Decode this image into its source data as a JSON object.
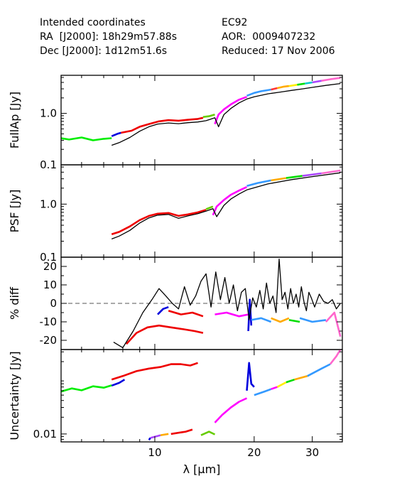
{
  "header": {
    "left": [
      "Intended coordinates",
      "RA  [J2000]: 18h29m57.88s",
      "Dec [J2000]: 1d12m51.6s"
    ],
    "right": [
      "EC92",
      "AOR:  0009407232",
      "Reduced: 17 Nov 2006"
    ]
  },
  "chart_data": {
    "type": "line",
    "xlabel": "λ [μm]",
    "x_scale": "log",
    "xlim": [
      5.2,
      37
    ],
    "x_ticks": [
      "10",
      "20",
      "30"
    ],
    "panels": [
      {
        "name": "fullap",
        "ylabel": "FullAp [Jy]",
        "y_scale": "log",
        "ylim": [
          0.1,
          5.5
        ],
        "y_ticks": [
          "1.0",
          "0.1"
        ],
        "series": [
          {
            "color": "#00ee00",
            "x": [
              5.2,
              5.5,
              6.0,
              6.5,
              7.0,
              7.4
            ],
            "y": [
              0.33,
              0.31,
              0.34,
              0.3,
              0.32,
              0.33
            ]
          },
          {
            "color": "#0000dd",
            "x": [
              7.4,
              7.7,
              7.9
            ],
            "y": [
              0.36,
              0.4,
              0.42
            ]
          },
          {
            "color": "#ee0000",
            "x": [
              7.9,
              8.5,
              9.0,
              9.6,
              10.3,
              11.0,
              11.8,
              12.6,
              13.5,
              14.0
            ],
            "y": [
              0.42,
              0.46,
              0.55,
              0.62,
              0.7,
              0.74,
              0.72,
              0.75,
              0.78,
              0.82
            ]
          },
          {
            "color": "#66cc00",
            "x": [
              14.0,
              14.6,
              15.2
            ],
            "y": [
              0.85,
              0.88,
              0.95
            ]
          },
          {
            "color": "#ff00ff",
            "x": [
              15.2,
              15.6,
              16.2,
              17.0,
              18.0,
              19.0
            ],
            "y": [
              0.62,
              0.95,
              1.2,
              1.5,
              1.85,
              2.1
            ]
          },
          {
            "color": "#3399ff",
            "x": [
              19.0,
              20.0,
              21.0,
              22.5
            ],
            "y": [
              2.2,
              2.5,
              2.7,
              2.9
            ]
          },
          {
            "color": "#ff3333",
            "x": [
              22.5,
              23.5
            ],
            "y": [
              2.9,
              3.1
            ]
          },
          {
            "color": "#ffaa00",
            "x": [
              23.5,
              24.5,
              25.5
            ],
            "y": [
              3.1,
              3.3,
              3.4
            ]
          },
          {
            "color": "#ffee00",
            "x": [
              25.5,
              27.0
            ],
            "y": [
              3.4,
              3.6
            ]
          },
          {
            "color": "#00dd00",
            "x": [
              27.0,
              28.5
            ],
            "y": [
              3.6,
              3.8
            ]
          },
          {
            "color": "#00cccc",
            "x": [
              28.5,
              30.0
            ],
            "y": [
              3.8,
              4.0
            ]
          },
          {
            "color": "#aa44ff",
            "x": [
              30.0,
              32.0
            ],
            "y": [
              4.0,
              4.3
            ]
          },
          {
            "color": "#ff66cc",
            "x": [
              32.0,
              34.0,
              36.5
            ],
            "y": [
              4.3,
              4.6,
              4.9
            ]
          },
          {
            "color": "#000000",
            "x": [
              7.4,
              7.8,
              8.4,
              9.0,
              9.6,
              10.2,
              11.0,
              11.8,
              12.6,
              13.5,
              14.3,
              15.2,
              15.6,
              16.2,
              17.0,
              18.0,
              19.0,
              20.0,
              22.0,
              24.0,
              26.0,
              28.0,
              30.0,
              33.0,
              36.5
            ],
            "y": [
              0.24,
              0.27,
              0.34,
              0.45,
              0.55,
              0.62,
              0.65,
              0.63,
              0.66,
              0.68,
              0.72,
              0.82,
              0.55,
              0.95,
              1.25,
              1.6,
              1.9,
              2.1,
              2.4,
              2.6,
              2.8,
              3.0,
              3.2,
              3.5,
              3.8
            ]
          }
        ]
      },
      {
        "name": "psf",
        "ylabel": "PSF [Jy]",
        "y_scale": "log",
        "ylim": [
          0.1,
          5.5
        ],
        "y_ticks": [
          "1.0",
          "0.1"
        ],
        "series": [
          {
            "color": "#ee0000",
            "x": [
              7.4,
              7.8,
              8.4,
              9.0,
              9.6,
              10.2,
              11.0,
              11.8,
              12.6,
              13.5,
              14.3
            ],
            "y": [
              0.27,
              0.3,
              0.38,
              0.5,
              0.6,
              0.66,
              0.68,
              0.6,
              0.64,
              0.7,
              0.78
            ]
          },
          {
            "color": "#66cc00",
            "x": [
              14.3,
              15.0
            ],
            "y": [
              0.8,
              0.9
            ]
          },
          {
            "color": "#ff00ff",
            "x": [
              15.0,
              15.4,
              16.2,
              17.0,
              18.0,
              19.0
            ],
            "y": [
              0.62,
              0.9,
              1.2,
              1.5,
              1.8,
              2.1
            ]
          },
          {
            "color": "#3399ff",
            "x": [
              19.0,
              20.5,
              22.5
            ],
            "y": [
              2.2,
              2.5,
              2.8
            ]
          },
          {
            "color": "#ffaa00",
            "x": [
              22.5,
              25.0
            ],
            "y": [
              2.8,
              3.1
            ]
          },
          {
            "color": "#00dd00",
            "x": [
              25.0,
              28.0
            ],
            "y": [
              3.1,
              3.4
            ]
          },
          {
            "color": "#aa44ff",
            "x": [
              28.0,
              32.0
            ],
            "y": [
              3.4,
              3.8
            ]
          },
          {
            "color": "#ff66cc",
            "x": [
              32.0,
              36.5
            ],
            "y": [
              3.8,
              4.3
            ]
          },
          {
            "color": "#000000",
            "x": [
              7.4,
              7.8,
              8.4,
              9.0,
              9.6,
              10.2,
              11.0,
              11.8,
              12.6,
              13.5,
              14.3,
              15.0,
              15.4,
              16.2,
              17.0,
              18.0,
              19.0,
              22.0,
              26.0,
              30.0,
              36.5
            ],
            "y": [
              0.22,
              0.25,
              0.32,
              0.44,
              0.55,
              0.62,
              0.64,
              0.54,
              0.6,
              0.66,
              0.74,
              0.82,
              0.58,
              0.95,
              1.25,
              1.55,
              1.85,
              2.4,
              2.9,
              3.3,
              3.9
            ]
          }
        ]
      },
      {
        "name": "diff",
        "ylabel": "% diff",
        "y_scale": "linear",
        "ylim": [
          -25,
          25
        ],
        "y_ticks": [
          "20",
          "10",
          "0",
          "-10",
          "-20"
        ],
        "series": [
          {
            "color": "#ee0000",
            "x": [
              8.2,
              8.8,
              9.5,
              10.3,
              11.2,
              12.2,
              13.2,
              14.0
            ],
            "y": [
              -22,
              -16,
              -13,
              -12,
              -13,
              -14,
              -15,
              -16
            ]
          },
          {
            "color": "#0000dd",
            "x": [
              10.2,
              10.6,
              11.0
            ],
            "y": [
              -6,
              -3,
              -2
            ]
          },
          {
            "color": "#ee0000",
            "x": [
              11.0,
              12.0,
              13.0,
              14.0
            ],
            "y": [
              -4,
              -6,
              -5,
              -7
            ]
          },
          {
            "color": "#ff00ff",
            "x": [
              15.2,
              16.5,
              18.0,
              19.2
            ],
            "y": [
              -6,
              -5,
              -7,
              -6
            ]
          },
          {
            "color": "#0000dd",
            "x": [
              19.2,
              19.4,
              19.6
            ],
            "y": [
              -15,
              2,
              -12
            ]
          },
          {
            "color": "#3399ff",
            "x": [
              19.6,
              21.0,
              22.5
            ],
            "y": [
              -9,
              -8,
              -10
            ]
          },
          {
            "color": "#ffaa00",
            "x": [
              22.5,
              24.0,
              25.5
            ],
            "y": [
              -8,
              -10,
              -8
            ]
          },
          {
            "color": "#00dd00",
            "x": [
              25.5,
              27.5
            ],
            "y": [
              -9,
              -10
            ]
          },
          {
            "color": "#3399ff",
            "x": [
              27.5,
              30.0,
              33.0
            ],
            "y": [
              -8,
              -10,
              -9
            ]
          },
          {
            "color": "#ff66cc",
            "x": [
              33.0,
              35.0,
              36.5
            ],
            "y": [
              -10,
              -5,
              -18
            ]
          },
          {
            "color": "#000000",
            "x": [
              7.5,
              8.0,
              8.6,
              9.2,
              9.8,
              10.3,
              10.8,
              11.3,
              11.8,
              12.3,
              12.8,
              13.3,
              13.8,
              14.3,
              14.8,
              15.3,
              15.8,
              16.3,
              16.8,
              17.3,
              17.8,
              18.3,
              18.8,
              19.3,
              19.8,
              20.3,
              20.8,
              21.3,
              21.8,
              22.3,
              22.8,
              23.3,
              23.8,
              24.3,
              24.8,
              25.3,
              25.8,
              26.3,
              26.8,
              27.3,
              27.8,
              28.3,
              28.8,
              29.3,
              29.8,
              30.5,
              31.5,
              32.5,
              33.5,
              34.5,
              35.5,
              36.5
            ],
            "y": [
              -21,
              -24,
              -15,
              -5,
              2,
              8,
              4,
              0,
              -3,
              9,
              -1,
              4,
              12,
              16,
              -2,
              17,
              2,
              14,
              0,
              10,
              -4,
              6,
              8,
              -9,
              3,
              -2,
              7,
              -3,
              11,
              0,
              4,
              -5,
              24,
              2,
              6,
              -3,
              8,
              0,
              5,
              -2,
              9,
              1,
              -4,
              6,
              3,
              -2,
              5,
              1,
              0,
              2,
              -3,
              0
            ]
          }
        ]
      },
      {
        "name": "uncertainty",
        "ylabel": "Uncertainty [Jy]",
        "y_scale": "log",
        "ylim": [
          0.0072,
          0.33
        ],
        "y_ticks": [
          "0.01"
        ],
        "series": [
          {
            "color": "#00ee00",
            "x": [
              5.2,
              5.6,
              6.0,
              6.5,
              7.0,
              7.4
            ],
            "y": [
              0.058,
              0.066,
              0.061,
              0.072,
              0.068,
              0.075
            ]
          },
          {
            "color": "#0000dd",
            "x": [
              7.4,
              7.8,
              8.1
            ],
            "y": [
              0.074,
              0.083,
              0.095
            ]
          },
          {
            "color": "#ee0000",
            "x": [
              7.4,
              8.0,
              8.8,
              9.6,
              10.4,
              11.2,
              12.0,
              12.8,
              13.5
            ],
            "y": [
              0.095,
              0.11,
              0.135,
              0.15,
              0.16,
              0.18,
              0.18,
              0.17,
              0.19
            ]
          },
          {
            "color": "#0000dd",
            "x": [
              9.6,
              9.7
            ],
            "y": [
              0.0078,
              0.0085
            ]
          },
          {
            "color": "#aa44ff",
            "x": [
              9.7,
              10.4
            ],
            "y": [
              0.0085,
              0.0095
            ]
          },
          {
            "color": "#ffaa00",
            "x": [
              10.4,
              11.0
            ],
            "y": [
              0.0095,
              0.01
            ]
          },
          {
            "color": "#ee0000",
            "x": [
              11.2,
              12.4,
              13.0
            ],
            "y": [
              0.01,
              0.011,
              0.012
            ]
          },
          {
            "color": "#66cc00",
            "x": [
              13.8,
              14.6,
              15.2
            ],
            "y": [
              0.0095,
              0.011,
              0.0098
            ]
          },
          {
            "color": "#ff00ff",
            "x": [
              15.2,
              16.0,
              17.0,
              18.0,
              19.0
            ],
            "y": [
              0.016,
              0.022,
              0.03,
              0.038,
              0.044
            ]
          },
          {
            "color": "#0000dd",
            "x": [
              19.0,
              19.3,
              19.6,
              20.0
            ],
            "y": [
              0.06,
              0.19,
              0.08,
              0.07
            ]
          },
          {
            "color": "#3399ff",
            "x": [
              20.0,
              21.5,
              22.5
            ],
            "y": [
              0.05,
              0.058,
              0.064
            ]
          },
          {
            "color": "#ff00ff",
            "x": [
              22.5,
              23.5
            ],
            "y": [
              0.064,
              0.07
            ]
          },
          {
            "color": "#ffee00",
            "x": [
              23.5,
              25.0
            ],
            "y": [
              0.07,
              0.085
            ]
          },
          {
            "color": "#00dd00",
            "x": [
              25.0,
              26.5
            ],
            "y": [
              0.085,
              0.095
            ]
          },
          {
            "color": "#ffaa00",
            "x": [
              26.5,
              29.0
            ],
            "y": [
              0.095,
              0.11
            ]
          },
          {
            "color": "#3399ff",
            "x": [
              29.0,
              32.0,
              34.0
            ],
            "y": [
              0.11,
              0.15,
              0.18
            ]
          },
          {
            "color": "#ff66cc",
            "x": [
              34.0,
              35.5,
              36.5
            ],
            "y": [
              0.18,
              0.25,
              0.33
            ]
          }
        ]
      }
    ],
    "reference_line": {
      "panel": "diff",
      "y": 0,
      "style": "dashed"
    }
  }
}
